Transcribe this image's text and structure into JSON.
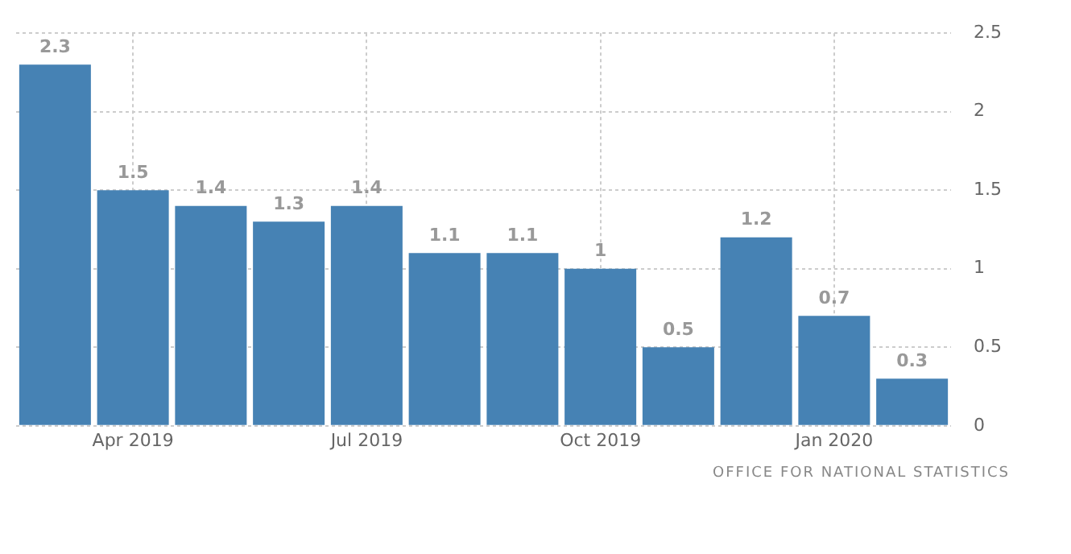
{
  "chart_data": {
    "type": "bar",
    "categories": [
      null,
      "Apr 2019",
      null,
      null,
      "Jul 2019",
      null,
      null,
      "Oct 2019",
      null,
      null,
      "Jan 2020",
      null
    ],
    "values": [
      2.3,
      1.5,
      1.4,
      1.3,
      1.4,
      1.1,
      1.1,
      1,
      0.5,
      1.2,
      0.7,
      0.3
    ],
    "color": "#4682b4",
    "ylim": [
      0,
      2.5
    ],
    "yticks": [
      0,
      0.5,
      1,
      1.5,
      2,
      2.5
    ],
    "grid": true,
    "data_labels": true,
    "annotations": [
      "OFFICE FOR NATIONAL STATISTICS"
    ]
  }
}
